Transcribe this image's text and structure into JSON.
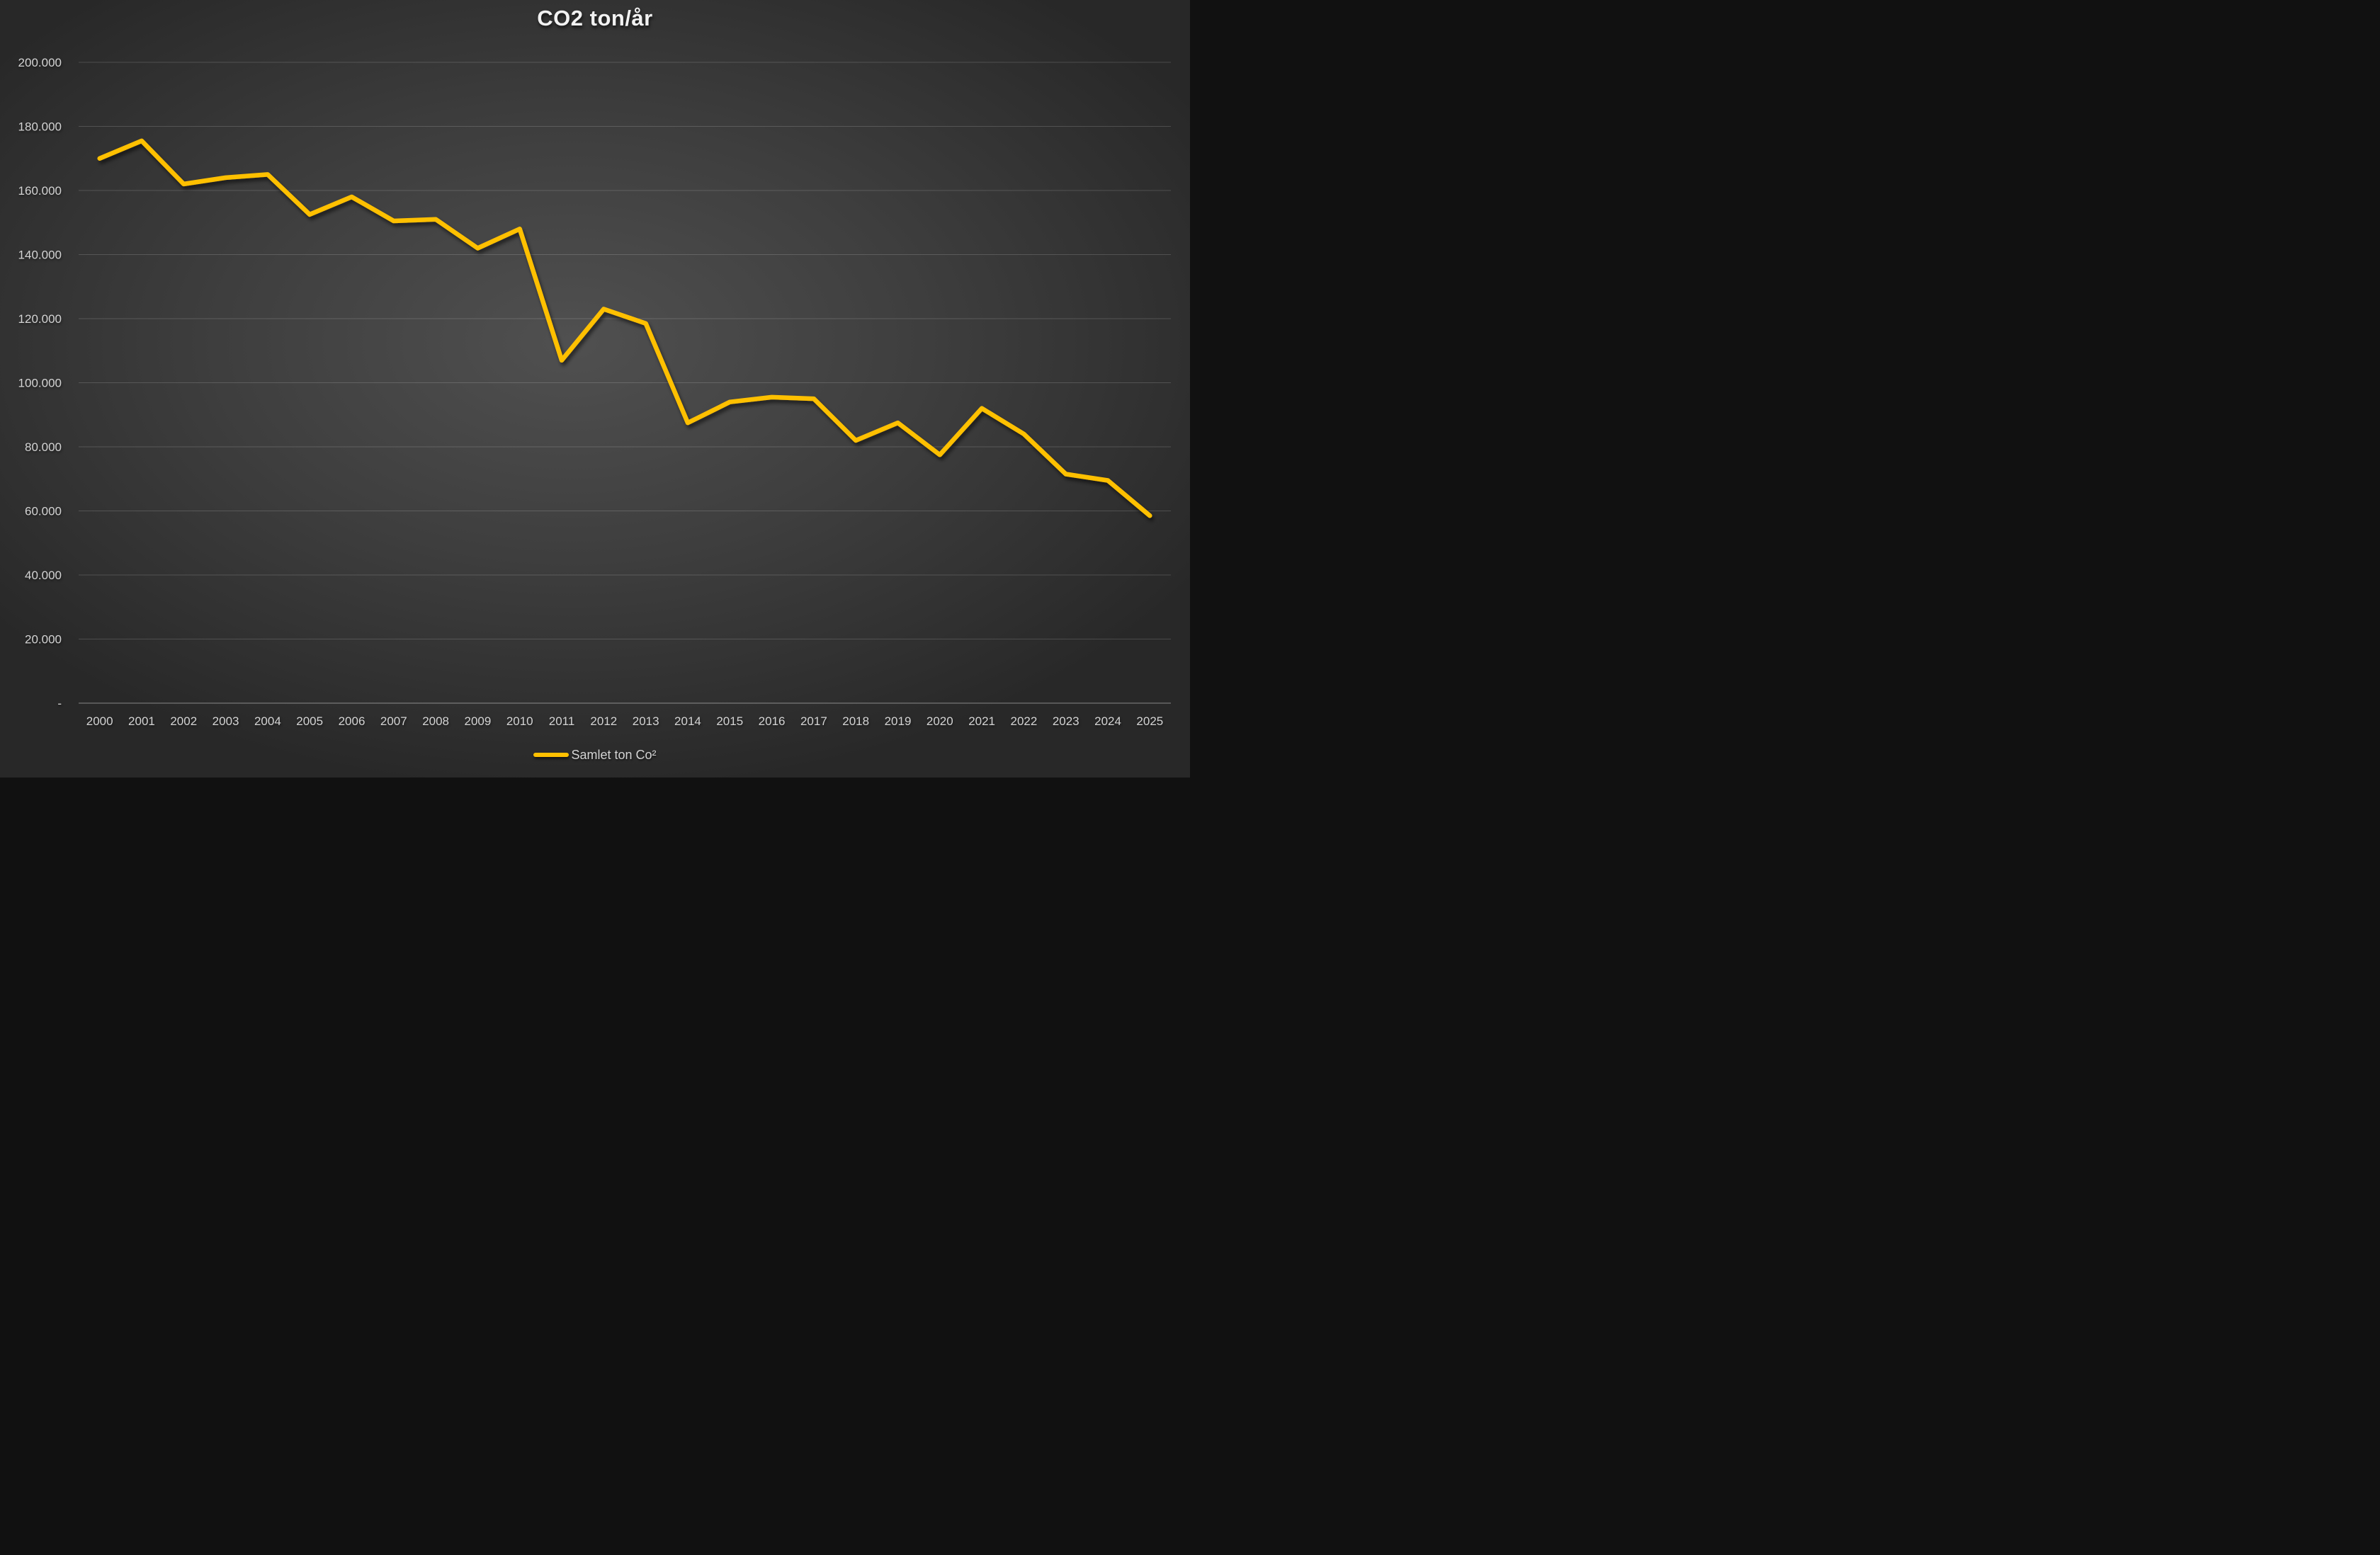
{
  "chart_data": {
    "type": "line",
    "title": "CO2 ton/år",
    "categories": [
      "2000",
      "2001",
      "2002",
      "2003",
      "2004",
      "2005",
      "2006",
      "2007",
      "2008",
      "2009",
      "2010",
      "2011",
      "2012",
      "2013",
      "2014",
      "2015",
      "2016",
      "2017",
      "2018",
      "2019",
      "2020",
      "2021",
      "2022",
      "2023",
      "2024",
      "2025"
    ],
    "series": [
      {
        "name": "Samlet ton Co²",
        "values": [
          170000,
          175500,
          162000,
          164000,
          165000,
          152500,
          158000,
          150500,
          151000,
          142000,
          148000,
          107000,
          123000,
          118500,
          87500,
          94000,
          95500,
          95000,
          82000,
          87500,
          77500,
          92000,
          84000,
          71500,
          69500,
          58500
        ]
      }
    ],
    "xlabel": "",
    "ylabel": "",
    "ylim": [
      0,
      200000
    ],
    "y_ticks": [
      0,
      20000,
      40000,
      60000,
      80000,
      100000,
      120000,
      140000,
      160000,
      180000,
      200000
    ],
    "y_tick_labels": [
      "-",
      "20.000",
      "40.000",
      "60.000",
      "80.000",
      "100.000",
      "120.000",
      "140.000",
      "160.000",
      "180.000",
      "200.000"
    ],
    "grid": true,
    "legend_position": "bottom-center",
    "colors": {
      "line": "#FFC000",
      "background_center": "#505050",
      "background_edge": "#282828",
      "tick_text": "#d4d4d4",
      "title_text": "#f2f2f2",
      "gridline": "rgba(255,255,255,0.16)",
      "axis_line": "rgba(255,255,255,0.30)"
    }
  }
}
